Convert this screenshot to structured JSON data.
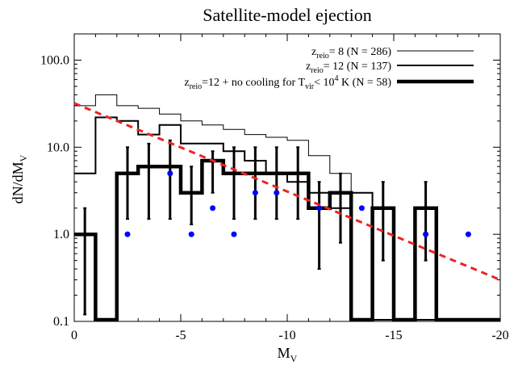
{
  "chart_data": {
    "type": "line",
    "title": "Satellite-model ejection",
    "xlabel": "M",
    "xlabel_sub": "V",
    "ylabel": "dN/dM",
    "ylabel_sub": "V",
    "xlim": [
      0,
      -20
    ],
    "ylim": [
      0.1,
      200
    ],
    "y_scale": "log",
    "grid": false,
    "legend_position": "top-right",
    "x_ticks": [
      0,
      -5,
      -10,
      -15,
      -20
    ],
    "x_tick_labels": [
      "0",
      "-5",
      "-10",
      "-15",
      "-20"
    ],
    "y_ticks": [
      0.1,
      1,
      10,
      100
    ],
    "y_tick_labels": [
      "0.1",
      "1.0",
      "10.0",
      "100.0"
    ],
    "series": [
      {
        "name": "z_reio= 8 (N = 286)",
        "legend": {
          "pre": "z",
          "sub": "reio",
          "post": "= 8 (N = 286)"
        },
        "style": "thin",
        "color": "#000000",
        "edges": [
          0,
          -1,
          -2,
          -3,
          -4,
          -5,
          -6,
          -7,
          -8,
          -9,
          -10,
          -11,
          -12,
          -13,
          -14,
          -15,
          -16,
          -17,
          -18,
          -19,
          -20
        ],
        "values": [
          30,
          40,
          30,
          28,
          24,
          20,
          18,
          16,
          14,
          13,
          12,
          8,
          5,
          3,
          0.09,
          0.09,
          0.09,
          0.09,
          0.09,
          0.09
        ]
      },
      {
        "name": "z_reio= 12 (N = 137)",
        "legend": {
          "pre": "z",
          "sub": "reio",
          "post": "= 12 (N = 137)"
        },
        "style": "medium",
        "color": "#000000",
        "edges": [
          0,
          -1,
          -2,
          -3,
          -4,
          -5,
          -6,
          -7,
          -8,
          -9,
          -10,
          -11,
          -12,
          -13,
          -14,
          -15,
          -16,
          -17,
          -18,
          -19,
          -20
        ],
        "values": [
          5,
          22,
          20,
          14,
          18,
          11,
          11,
          9,
          7,
          5,
          4,
          3,
          2,
          3,
          0.09,
          0.09,
          0.09,
          0.09,
          0.09,
          0.09
        ]
      },
      {
        "name": "z_reio=12 + no cooling for T_vir< 10^4 K (N = 58)",
        "legend": {
          "pre": "z",
          "sub": "reio",
          "mid": "=12 + no cooling for T",
          "sub2": "vir",
          "mid2": "< 10",
          "sup": "4",
          "post": " K (N = 58)"
        },
        "style": "thick",
        "color": "#000000",
        "edges": [
          0,
          -1,
          -2,
          -3,
          -4,
          -5,
          -6,
          -7,
          -8,
          -9,
          -10,
          -11,
          -12,
          -13,
          -14,
          -15,
          -16,
          -17,
          -18,
          -19,
          -20
        ],
        "values": [
          1,
          0.09,
          5,
          6,
          6,
          3,
          7,
          5,
          5,
          5,
          5,
          2,
          3,
          0.09,
          2,
          0.09,
          2,
          0.09,
          0.09,
          0.09
        ],
        "error_bars": [
          {
            "x": -0.5,
            "lo": 0.12,
            "hi": 2
          },
          {
            "x": -2.5,
            "lo": 1.5,
            "hi": 10
          },
          {
            "x": -3.5,
            "lo": 1.5,
            "hi": 11
          },
          {
            "x": -4.5,
            "lo": 1.5,
            "hi": 12
          },
          {
            "x": -5.5,
            "lo": 1.3,
            "hi": 6
          },
          {
            "x": -6.5,
            "lo": 3,
            "hi": 9
          },
          {
            "x": -7.5,
            "lo": 1.5,
            "hi": 10
          },
          {
            "x": -8.5,
            "lo": 1.5,
            "hi": 10
          },
          {
            "x": -9.5,
            "lo": 1.5,
            "hi": 10
          },
          {
            "x": -10.5,
            "lo": 1.5,
            "hi": 10
          },
          {
            "x": -11.5,
            "lo": 0.4,
            "hi": 4
          },
          {
            "x": -12.5,
            "lo": 0.8,
            "hi": 5
          },
          {
            "x": -14.5,
            "lo": 0.5,
            "hi": 4
          },
          {
            "x": -16.5,
            "lo": 0.5,
            "hi": 4
          }
        ]
      },
      {
        "name": "",
        "style": "points",
        "color": "#0000ff",
        "x": [
          -2.5,
          -4.5,
          -5.5,
          -6.5,
          -7.5,
          -8.5,
          -9.5,
          -11.5,
          -13.5,
          -16.5,
          -18.5
        ],
        "values": [
          1,
          5,
          1,
          2,
          1,
          3,
          3,
          2,
          2,
          1,
          1
        ]
      },
      {
        "name": "",
        "style": "dashed",
        "color": "#ee2222",
        "x": [
          0,
          -20
        ],
        "values": [
          32,
          0.3
        ]
      }
    ]
  }
}
